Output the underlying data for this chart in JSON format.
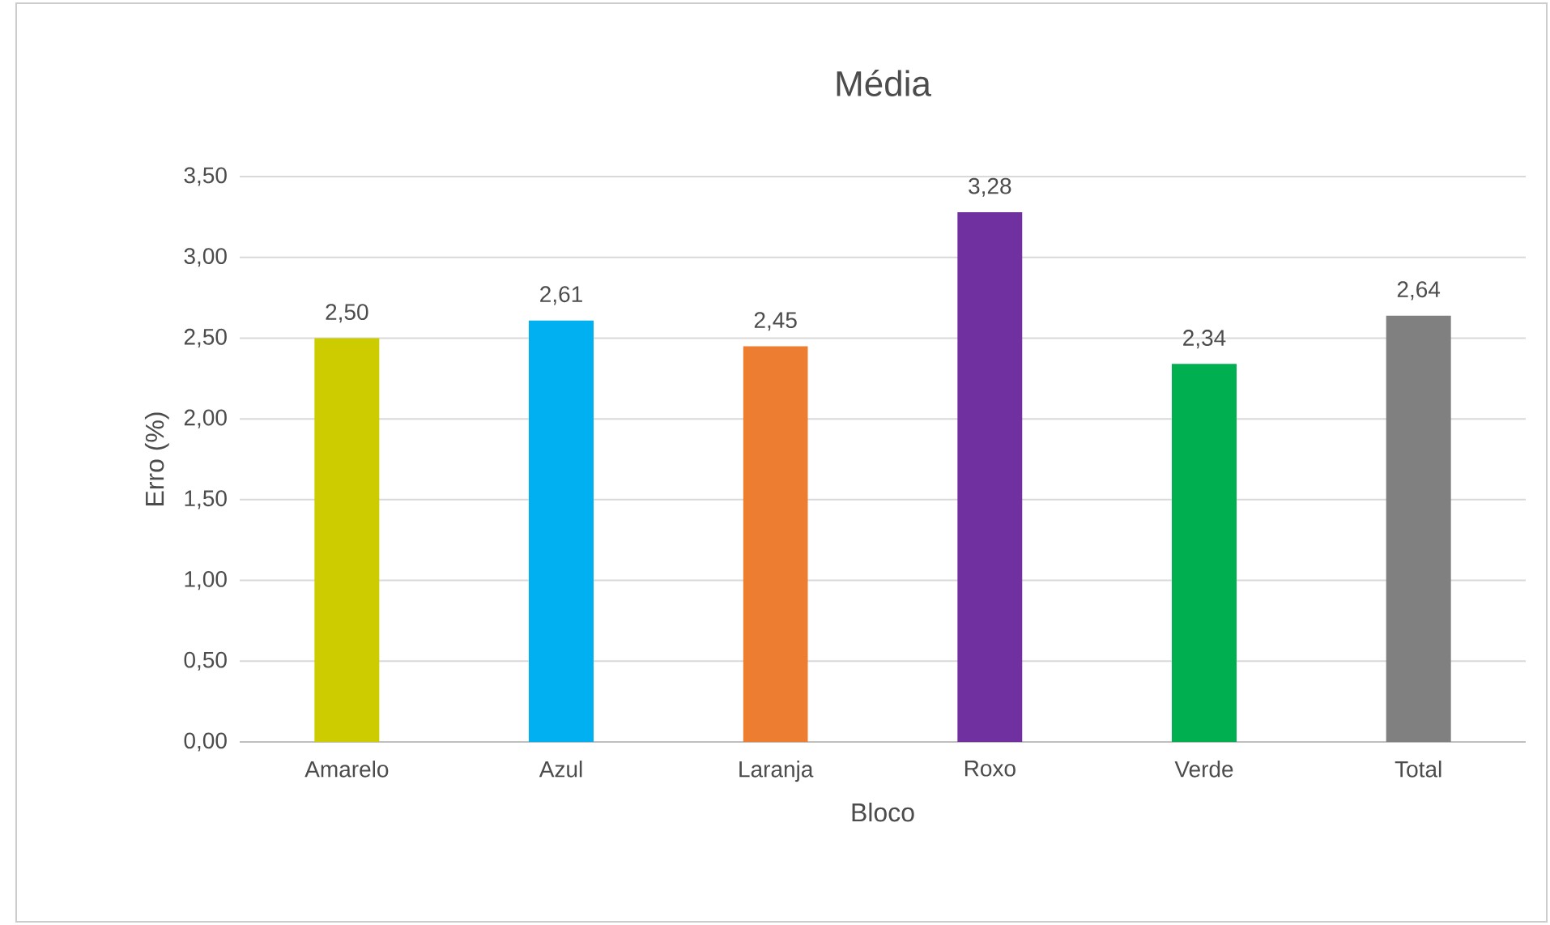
{
  "chart_data": {
    "type": "bar",
    "title": "Média",
    "xlabel": "Bloco",
    "ylabel": "Erro (%)",
    "categories": [
      "Amarelo",
      "Azul",
      "Laranja",
      "Roxo",
      "Verde",
      "Total"
    ],
    "values": [
      2.5,
      2.61,
      2.45,
      3.28,
      2.34,
      2.64
    ],
    "value_labels": [
      "2,50",
      "2,61",
      "2,45",
      "3,28",
      "2,34",
      "2,64"
    ],
    "colors": [
      "#cccc00",
      "#00b0f0",
      "#ed7d31",
      "#7030a0",
      "#00b050",
      "#808080"
    ],
    "ylim": [
      0,
      3.5
    ],
    "yticks": [
      {
        "value": 0,
        "label": "0,00"
      },
      {
        "value": 0.5,
        "label": "0,50"
      },
      {
        "value": 1,
        "label": "1,00"
      },
      {
        "value": 1.5,
        "label": "1,50"
      },
      {
        "value": 2,
        "label": "2,00"
      },
      {
        "value": 2.5,
        "label": "2,50"
      },
      {
        "value": 3,
        "label": "3,00"
      },
      {
        "value": 3.5,
        "label": "3,50"
      }
    ],
    "grid": "y"
  }
}
